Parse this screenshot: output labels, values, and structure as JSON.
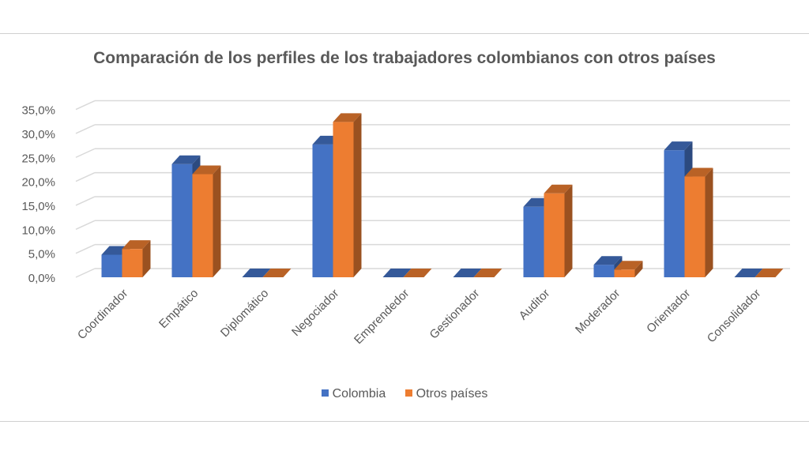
{
  "chart_data": {
    "type": "bar",
    "title": "Comparación  de los perfiles de los trabajadores colombianos  con otros países",
    "categories": [
      "Coordinador",
      "Empático",
      "Diplomático",
      "Negociador",
      "Emprendedor",
      "Gestionador",
      "Auditor",
      "Moderador",
      "Orientador",
      "Consolidador"
    ],
    "series": [
      {
        "name": "Colombia",
        "color": "#4472C4",
        "values": [
          4.7,
          23.6,
          0,
          27.7,
          0,
          0,
          14.7,
          2.6,
          26.5,
          0
        ]
      },
      {
        "name": "Otros países",
        "color": "#ED7D31",
        "values": [
          5.9,
          21.5,
          0,
          32.4,
          0,
          0,
          17.5,
          1.6,
          21.0,
          0
        ]
      }
    ],
    "ylim": [
      0,
      35
    ],
    "yticks": [
      "0,0%",
      "5,0%",
      "10,0%",
      "15,0%",
      "20,0%",
      "25,0%",
      "30,0%",
      "35,0%"
    ],
    "grid": true,
    "legend_position": "bottom",
    "style": "3d-clustered-column"
  }
}
